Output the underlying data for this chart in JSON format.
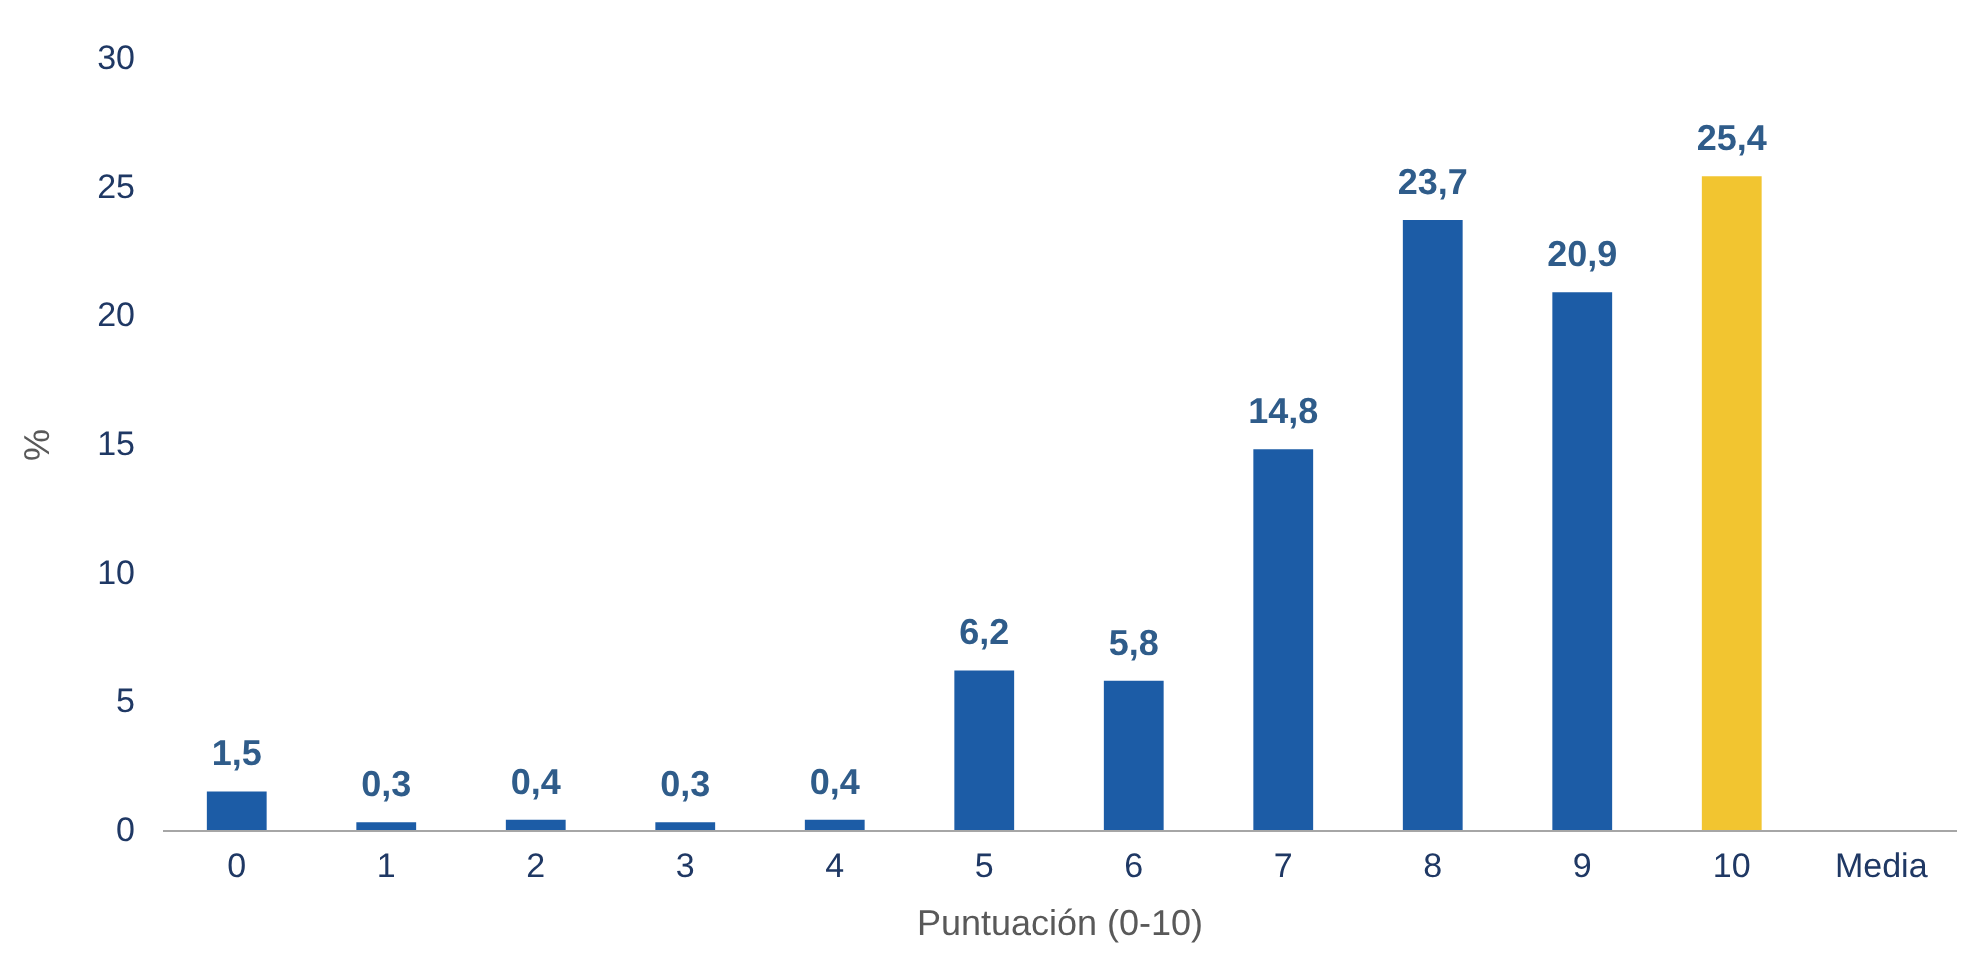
{
  "chart_data": {
    "type": "bar",
    "xlabel": "Puntuación (0-10)",
    "ylabel": "%",
    "categories": [
      "0",
      "1",
      "2",
      "3",
      "4",
      "5",
      "6",
      "7",
      "8",
      "9",
      "10",
      "Media"
    ],
    "values": [
      1.5,
      0.3,
      0.4,
      0.3,
      0.4,
      6.2,
      5.8,
      14.8,
      23.7,
      20.9,
      25.4,
      null
    ],
    "colors": [
      "#1c5ca6",
      "#1c5ca6",
      "#1c5ca6",
      "#1c5ca6",
      "#1c5ca6",
      "#1c5ca6",
      "#1c5ca6",
      "#1c5ca6",
      "#1c5ca6",
      "#1c5ca6",
      "#f2c530",
      null
    ],
    "value_labels": [
      "1,5",
      "0,3",
      "0,4",
      "0,3",
      "0,4",
      "6,2",
      "5,8",
      "14,8",
      "23,7",
      "20,9",
      "25,4",
      null
    ],
    "ylim": [
      0,
      30
    ],
    "yticks": [
      0,
      5,
      10,
      15,
      20,
      25,
      30
    ],
    "grid": false
  }
}
